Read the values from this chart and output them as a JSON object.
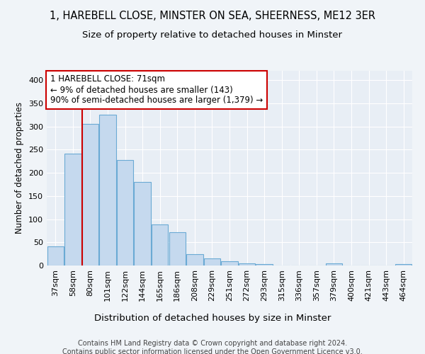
{
  "title1": "1, HAREBELL CLOSE, MINSTER ON SEA, SHEERNESS, ME12 3ER",
  "title2": "Size of property relative to detached houses in Minster",
  "xlabel": "Distribution of detached houses by size in Minster",
  "ylabel": "Number of detached properties",
  "categories": [
    "37sqm",
    "58sqm",
    "80sqm",
    "101sqm",
    "122sqm",
    "144sqm",
    "165sqm",
    "186sqm",
    "208sqm",
    "229sqm",
    "251sqm",
    "272sqm",
    "293sqm",
    "315sqm",
    "336sqm",
    "357sqm",
    "379sqm",
    "400sqm",
    "421sqm",
    "443sqm",
    "464sqm"
  ],
  "bar_heights": [
    42,
    242,
    305,
    325,
    228,
    180,
    88,
    72,
    25,
    15,
    9,
    4,
    3,
    0,
    0,
    0,
    4,
    0,
    0,
    0,
    3
  ],
  "bar_color": "#c5d9ee",
  "bar_edge_color": "#6aaad4",
  "vline_color": "#cc0000",
  "vline_x_index": 2,
  "annotation_text": "1 HAREBELL CLOSE: 71sqm\n← 9% of detached houses are smaller (143)\n90% of semi-detached houses are larger (1,379) →",
  "annotation_box_edgecolor": "#cc0000",
  "ylim": [
    0,
    420
  ],
  "yticks": [
    0,
    50,
    100,
    150,
    200,
    250,
    300,
    350,
    400
  ],
  "background_color": "#f0f4f8",
  "plot_bg_color": "#e8eef5",
  "grid_color": "#ffffff",
  "title1_fontsize": 10.5,
  "title2_fontsize": 9.5,
  "xlabel_fontsize": 9.5,
  "ylabel_fontsize": 8.5,
  "tick_fontsize": 8,
  "annotation_fontsize": 8.5,
  "footer_text": "Contains HM Land Registry data © Crown copyright and database right 2024.\nContains public sector information licensed under the Open Government Licence v3.0.",
  "footer_fontsize": 7
}
